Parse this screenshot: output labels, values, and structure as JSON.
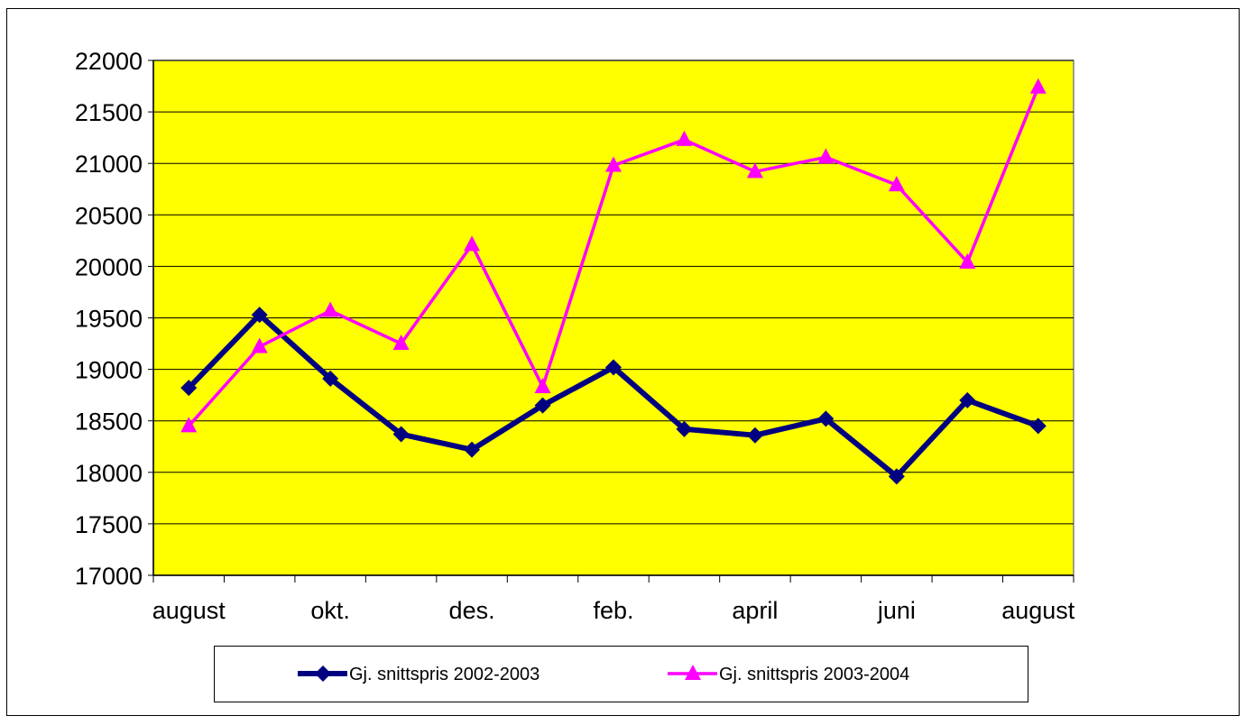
{
  "chart_data": {
    "type": "line",
    "categories": [
      "august",
      null,
      "okt.",
      null,
      "des.",
      null,
      "feb.",
      null,
      "april",
      null,
      "juni",
      null,
      "august"
    ],
    "series": [
      {
        "name": "Gj. snittspris 2002-2003",
        "color": "#000080",
        "marker": "diamond",
        "values": [
          18820,
          19530,
          18910,
          18370,
          18220,
          18650,
          19020,
          18420,
          18360,
          18520,
          17960,
          18700,
          18450
        ]
      },
      {
        "name": "Gj. snittspris 2003-2004",
        "color": "#ff00ff",
        "marker": "triangle",
        "values": [
          18450,
          19220,
          19570,
          19250,
          20210,
          18830,
          20980,
          21230,
          20920,
          21060,
          20790,
          20040,
          21740
        ]
      }
    ],
    "ylim": [
      17000,
      22000
    ],
    "yticks": [
      17000,
      17500,
      18000,
      18500,
      19000,
      19500,
      20000,
      20500,
      21000,
      21500,
      22000
    ],
    "grid": true,
    "plot_background": "#ffff00",
    "legend": "bottom"
  }
}
